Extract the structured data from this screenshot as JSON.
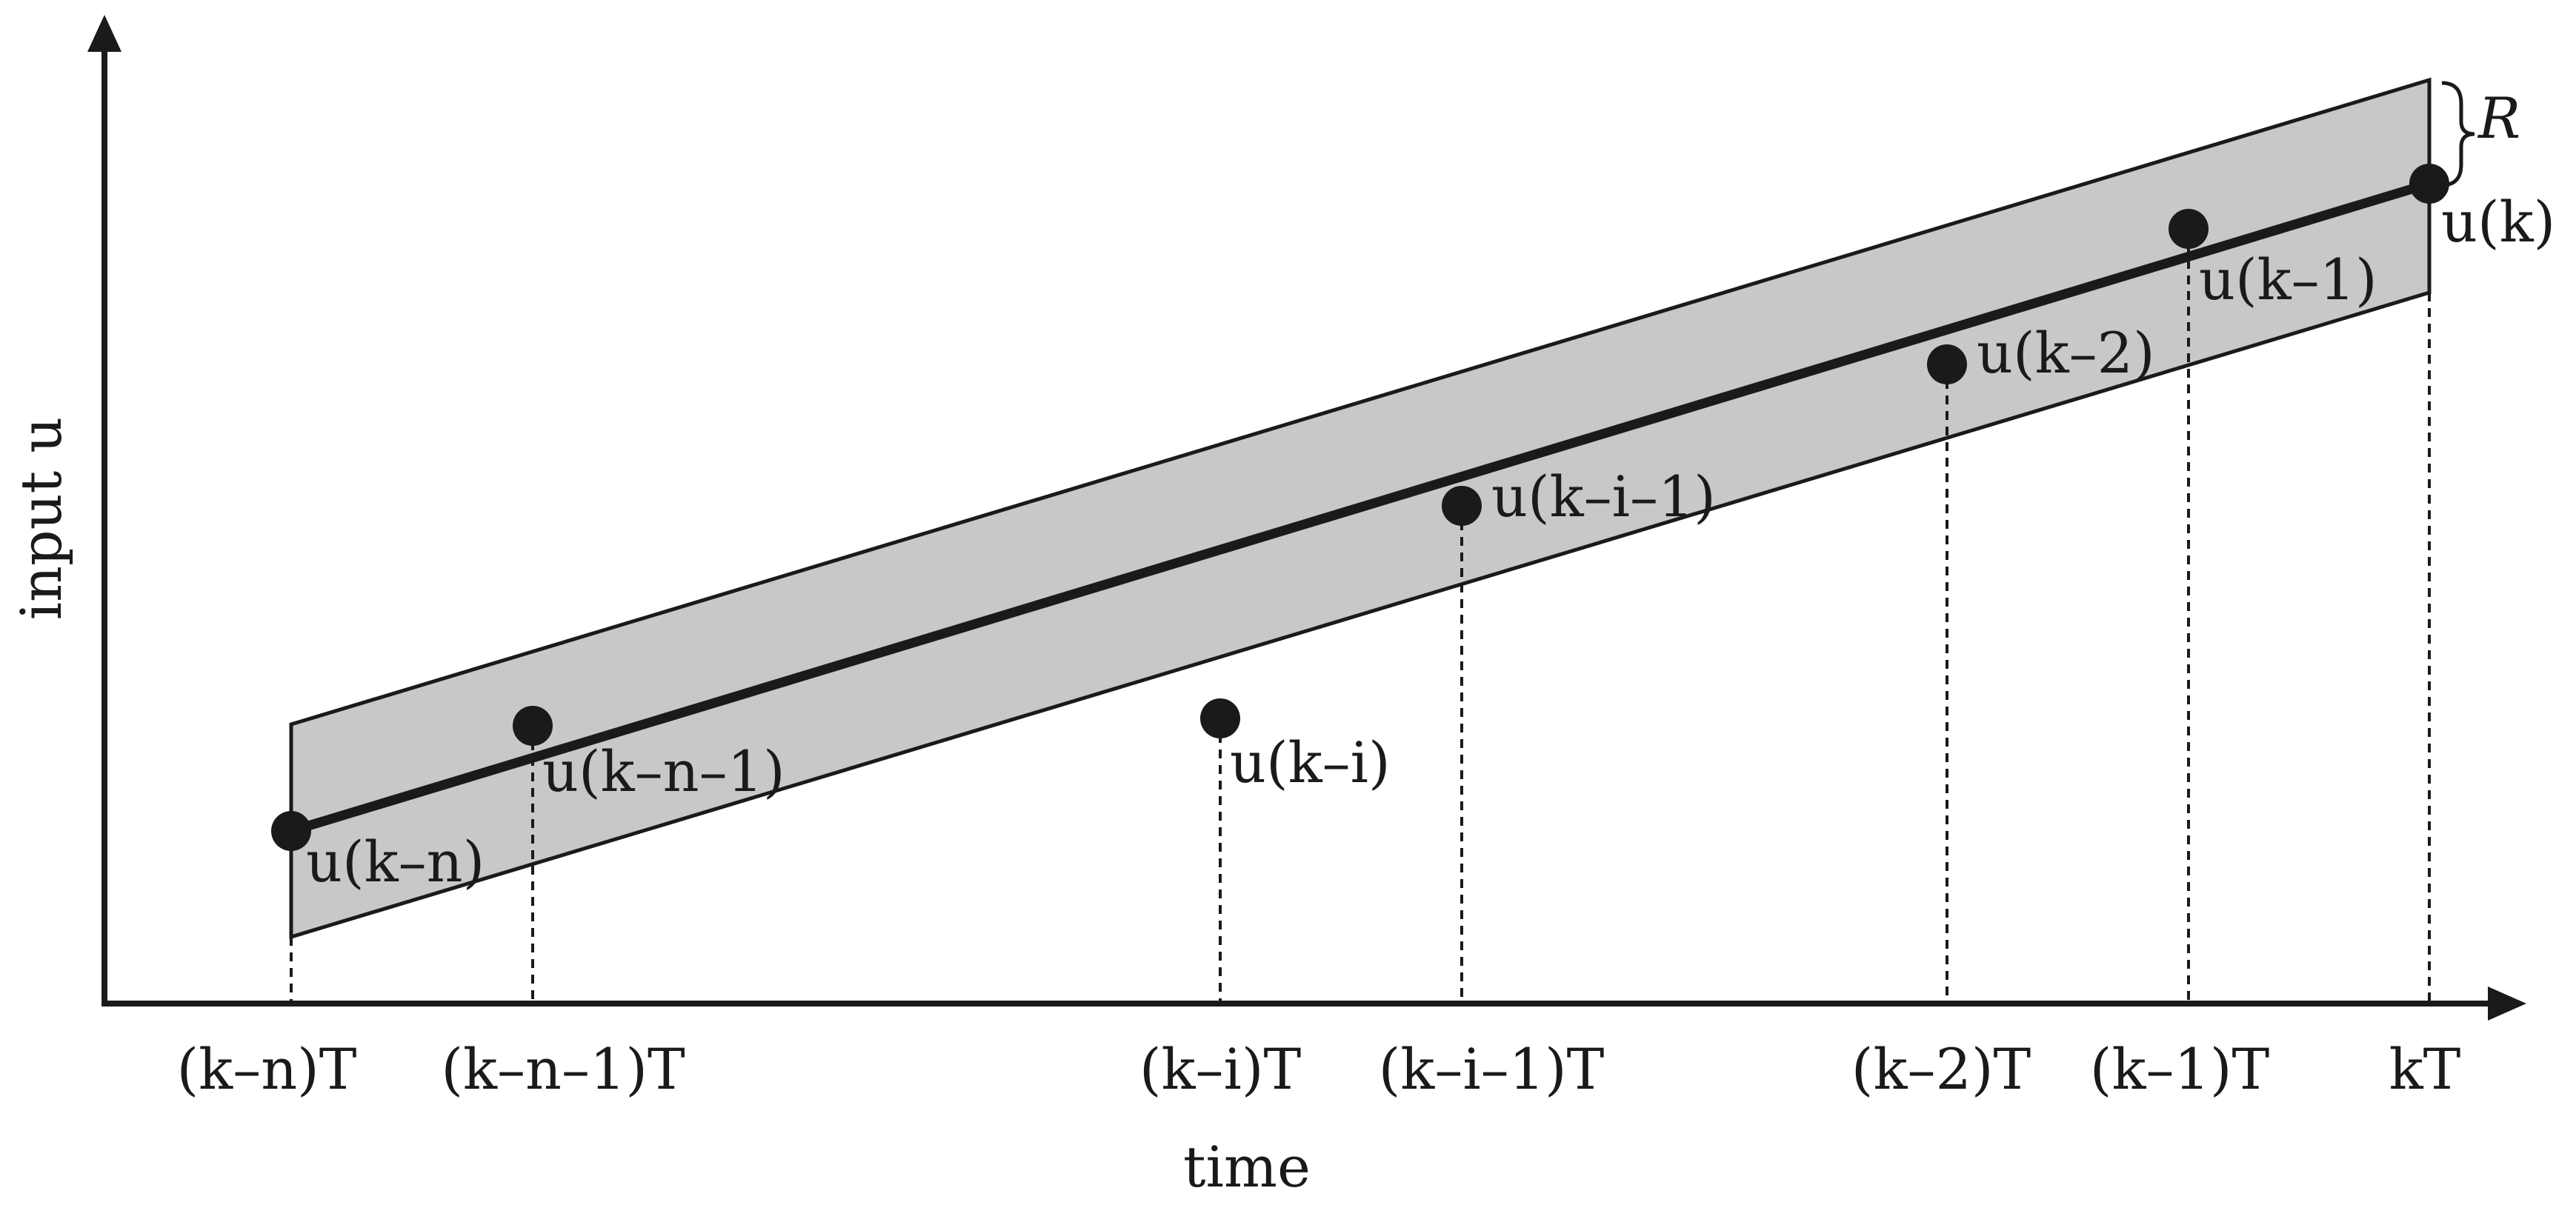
{
  "axes": {
    "y_label": "input u",
    "x_label": "time"
  },
  "band_label": "R",
  "ticks": [
    "(k–n)T",
    "(k–n–1)T",
    "(k–i)T",
    "(k–i–1)T",
    "(k–2)T",
    "(k–1)T",
    "kT"
  ],
  "points": [
    {
      "label": "u(k–n)"
    },
    {
      "label": "u(k–n–1)"
    },
    {
      "label": "u(k–i)"
    },
    {
      "label": "u(k–i–1)"
    },
    {
      "label": "u(k–2)"
    },
    {
      "label": "u(k–1)"
    },
    {
      "label": "u(k)"
    }
  ],
  "colors": {
    "band_fill": "#c8c8c6",
    "ink": "#1a1a1a"
  }
}
